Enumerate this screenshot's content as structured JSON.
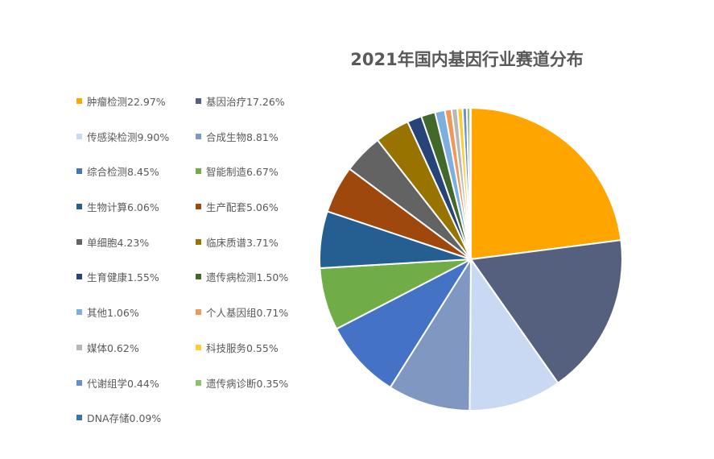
{
  "chart_data": {
    "type": "pie",
    "title": "2021年国内基因行业赛道分布",
    "legend_position": "left",
    "slices": [
      {
        "label": "肿瘤检测22.97%",
        "name": "肿瘤检测",
        "value": 22.97,
        "color": "#FFA500"
      },
      {
        "label": "基因治疗17.26%",
        "name": "基因治疗",
        "value": 17.26,
        "color": "#55607E"
      },
      {
        "label": "传感染检测9.90%",
        "name": "传感染检测",
        "value": 9.9,
        "color": "#C9D8F3"
      },
      {
        "label": "合成生物8.81%",
        "name": "合成生物",
        "value": 8.81,
        "color": "#8097C2"
      },
      {
        "label": "综合检测8.45%",
        "name": "综合检测",
        "value": 8.45,
        "color": "#4472C4"
      },
      {
        "label": "智能制造6.67%",
        "name": "智能制造",
        "value": 6.67,
        "color": "#70AD47"
      },
      {
        "label": "生物计算6.06%",
        "name": "生物计算",
        "value": 6.06,
        "color": "#255E91"
      },
      {
        "label": "生产配套5.06%",
        "name": "生产配套",
        "value": 5.06,
        "color": "#9E480E"
      },
      {
        "label": "单细胞4.23%",
        "name": "单细胞",
        "value": 4.23,
        "color": "#636363"
      },
      {
        "label": "临床质谱3.71%",
        "name": "临床质谱",
        "value": 3.71,
        "color": "#997300"
      },
      {
        "label": "生育健康1.55%",
        "name": "生育健康",
        "value": 1.55,
        "color": "#264478"
      },
      {
        "label": "遗传病检测1.50%",
        "name": "遗传病检测",
        "value": 1.5,
        "color": "#43682B"
      },
      {
        "label": "其他1.06%",
        "name": "其他",
        "value": 1.06,
        "color": "#7CAFDD"
      },
      {
        "label": "个人基因组0.71%",
        "name": "个人基因组",
        "value": 0.71,
        "color": "#F1975A"
      },
      {
        "label": "媒体0.62%",
        "name": "媒体",
        "value": 0.62,
        "color": "#B7B7B7"
      },
      {
        "label": "科技服务0.55%",
        "name": "科技服务",
        "value": 0.55,
        "color": "#FFCD33"
      },
      {
        "label": "代谢组学0.44%",
        "name": "代谢组学",
        "value": 0.44,
        "color": "#698ED0"
      },
      {
        "label": "遗传病诊断0.35%",
        "name": "遗传病诊断",
        "value": 0.35,
        "color": "#8CC168"
      },
      {
        "label": "DNA存储0.09%",
        "name": "DNA存储",
        "value": 0.09,
        "color": "#3A74B5"
      }
    ]
  }
}
